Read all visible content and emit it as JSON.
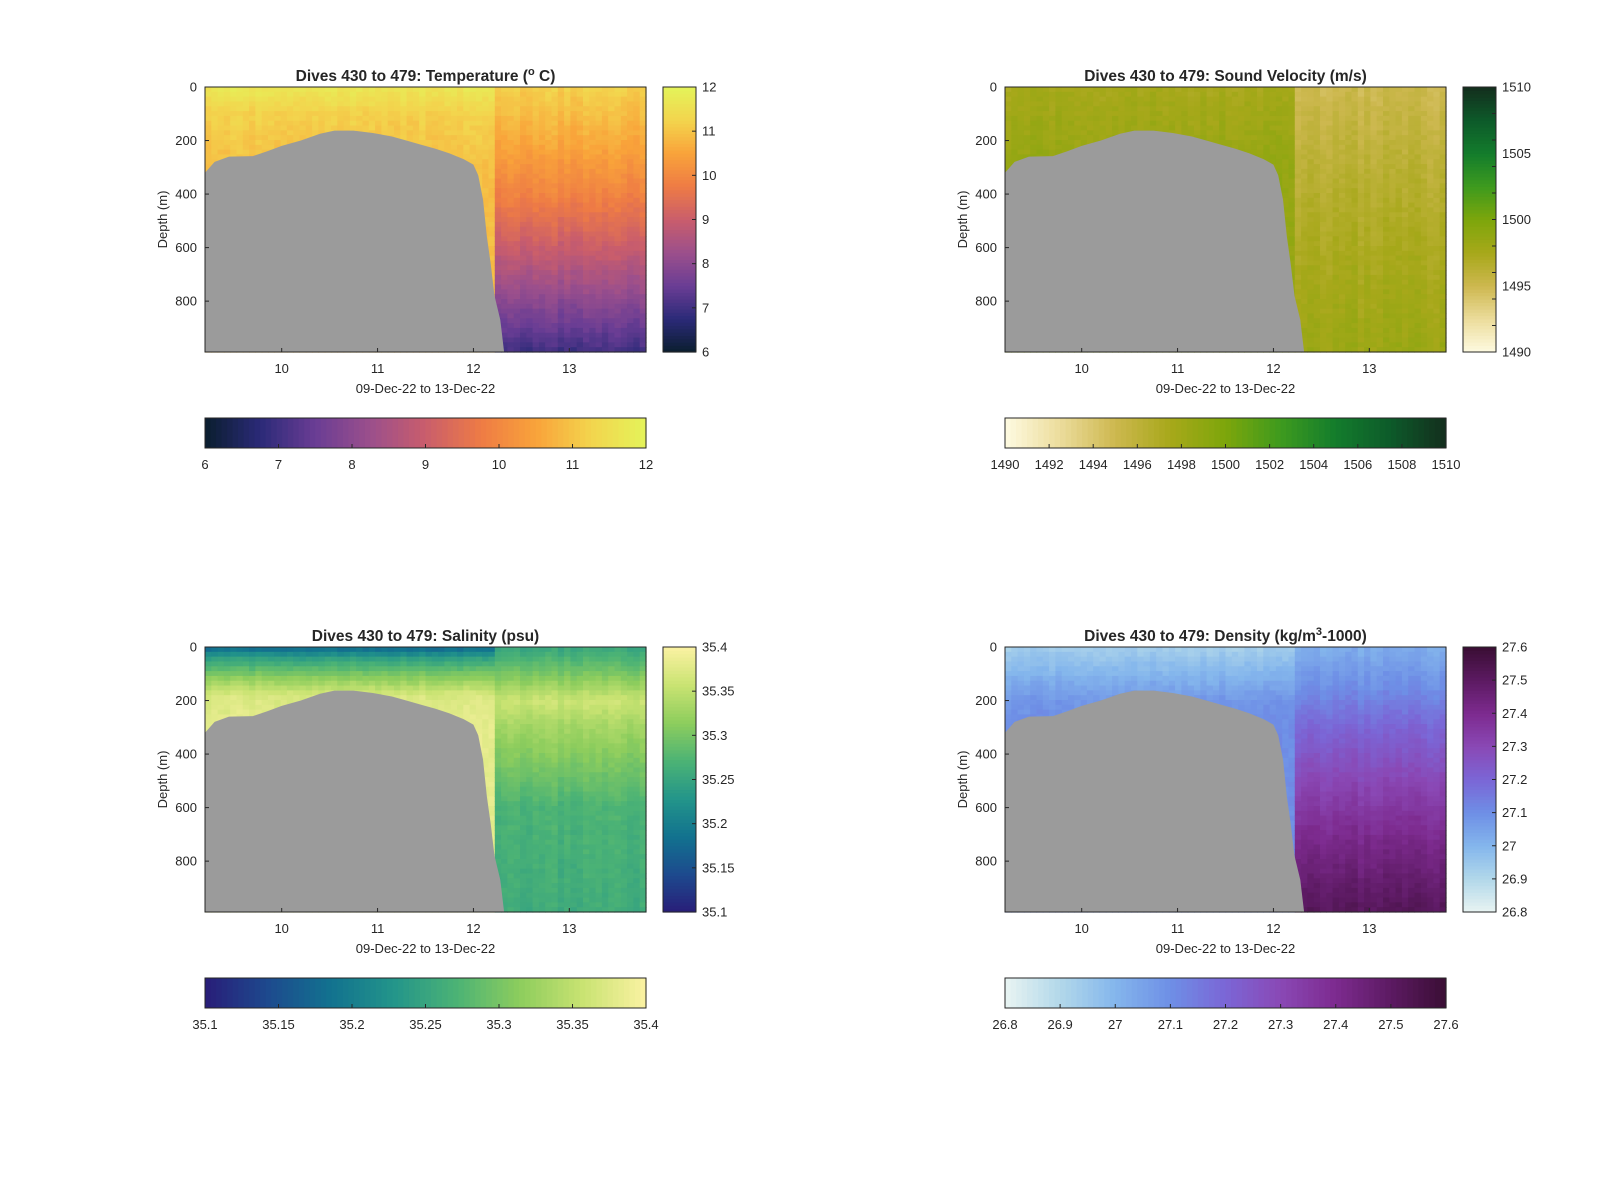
{
  "figure": {
    "background": "#ffffff",
    "mask_color": "#9b9b9b"
  },
  "chart_data": [
    {
      "type": "heatmap",
      "title_main": "Dives 430 to 479: Temperature (",
      "title_sup": "o",
      "title_tail": " C)",
      "xlabel": "09-Dec-22 to 13-Dec-22",
      "ylabel": "Depth (m)",
      "xticks": [
        "10",
        "11",
        "12",
        "13"
      ],
      "xlim": [
        9.2,
        13.8
      ],
      "yticks": [
        "0",
        "200",
        "400",
        "600",
        "800"
      ],
      "ylim": [
        0,
        990
      ],
      "y_reversed": true,
      "colorbar_range": [
        6,
        12
      ],
      "colorbar_ticks": [
        "6",
        "7",
        "8",
        "9",
        "10",
        "11",
        "12"
      ],
      "colormap": [
        "#0a1e2e",
        "#2b2a78",
        "#6a3d94",
        "#9b4f8c",
        "#c95d6c",
        "#ee7b45",
        "#f9a33a",
        "#f3d44d",
        "#e4f45a"
      ],
      "field": {
        "east_transition_day": 12.22,
        "west_profile": [
          [
            0,
            11.7
          ],
          [
            100,
            11.2
          ],
          [
            300,
            10.9
          ]
        ],
        "east_profile": [
          [
            0,
            11.2
          ],
          [
            200,
            10.6
          ],
          [
            400,
            9.9
          ],
          [
            600,
            9.0
          ],
          [
            800,
            8.0
          ],
          [
            990,
            7.0
          ]
        ]
      },
      "bathymetry": [
        [
          9.2,
          320
        ],
        [
          9.3,
          280
        ],
        [
          9.45,
          260
        ],
        [
          9.7,
          258
        ],
        [
          9.85,
          240
        ],
        [
          10.0,
          220
        ],
        [
          10.2,
          200
        ],
        [
          10.4,
          175
        ],
        [
          10.55,
          163
        ],
        [
          10.75,
          163
        ],
        [
          10.95,
          172
        ],
        [
          11.15,
          185
        ],
        [
          11.3,
          200
        ],
        [
          11.45,
          215
        ],
        [
          11.6,
          230
        ],
        [
          11.75,
          248
        ],
        [
          11.9,
          270
        ],
        [
          12.0,
          290
        ],
        [
          12.05,
          330
        ],
        [
          12.1,
          420
        ],
        [
          12.14,
          560
        ],
        [
          12.18,
          660
        ],
        [
          12.22,
          780
        ],
        [
          12.28,
          870
        ],
        [
          12.32,
          990
        ]
      ]
    },
    {
      "type": "heatmap",
      "title_main": "Dives 430 to 479: Sound Velocity (m/s)",
      "title_sup": "",
      "title_tail": "",
      "xlabel": "09-Dec-22 to 13-Dec-22",
      "ylabel": "Depth (m)",
      "xticks": [
        "10",
        "11",
        "12",
        "13"
      ],
      "xlim": [
        9.2,
        13.8
      ],
      "yticks": [
        "0",
        "200",
        "400",
        "600",
        "800"
      ],
      "ylim": [
        0,
        990
      ],
      "y_reversed": true,
      "colorbar_range": [
        1490,
        1510
      ],
      "colorbar_ticks": [
        "1490",
        "1492",
        "1494",
        "1496",
        "1498",
        "1500",
        "1502",
        "1504",
        "1506",
        "1508",
        "1510"
      ],
      "colormap": [
        "#fefbe1",
        "#ecdc9c",
        "#cdb84f",
        "#a7a81a",
        "#7da60b",
        "#3e9a1e",
        "#137c2c",
        "#0d5a2a",
        "#132e1d"
      ],
      "field": {
        "east_transition_day": 12.22,
        "west_profile": [
          [
            0,
            1497.5
          ],
          [
            300,
            1498.5
          ]
        ],
        "east_profile": [
          [
            0,
            1495.0
          ],
          [
            300,
            1496.2
          ],
          [
            600,
            1497.2
          ],
          [
            990,
            1498.2
          ]
        ]
      },
      "bathymetry": [
        [
          9.2,
          320
        ],
        [
          9.3,
          280
        ],
        [
          9.45,
          260
        ],
        [
          9.7,
          258
        ],
        [
          9.85,
          240
        ],
        [
          10.0,
          220
        ],
        [
          10.2,
          200
        ],
        [
          10.4,
          175
        ],
        [
          10.55,
          163
        ],
        [
          10.75,
          163
        ],
        [
          10.95,
          172
        ],
        [
          11.15,
          185
        ],
        [
          11.3,
          200
        ],
        [
          11.45,
          215
        ],
        [
          11.6,
          230
        ],
        [
          11.75,
          248
        ],
        [
          11.9,
          270
        ],
        [
          12.0,
          290
        ],
        [
          12.05,
          330
        ],
        [
          12.1,
          420
        ],
        [
          12.14,
          560
        ],
        [
          12.18,
          660
        ],
        [
          12.22,
          780
        ],
        [
          12.28,
          870
        ],
        [
          12.32,
          990
        ]
      ]
    },
    {
      "type": "heatmap",
      "title_main": "Dives 430 to 479: Salinity (psu)",
      "title_sup": "",
      "title_tail": "",
      "xlabel": "09-Dec-22 to 13-Dec-22",
      "ylabel": "Depth (m)",
      "xticks": [
        "10",
        "11",
        "12",
        "13"
      ],
      "xlim": [
        9.2,
        13.8
      ],
      "yticks": [
        "0",
        "200",
        "400",
        "600",
        "800"
      ],
      "ylim": [
        0,
        990
      ],
      "y_reversed": true,
      "colorbar_range": [
        35.1,
        35.4
      ],
      "colorbar_ticks": [
        "35.1",
        "35.15",
        "35.2",
        "35.25",
        "35.3",
        "35.35",
        "35.4"
      ],
      "colormap": [
        "#281d78",
        "#1d4a8e",
        "#12728f",
        "#23958a",
        "#4cb375",
        "#8dcd5d",
        "#c9e372",
        "#fbf2a2"
      ],
      "field": {
        "east_transition_day": 12.22,
        "west_profile": [
          [
            0,
            35.17
          ],
          [
            40,
            35.24
          ],
          [
            100,
            35.3
          ],
          [
            180,
            35.37
          ],
          [
            300,
            35.38
          ]
        ],
        "east_profile": [
          [
            0,
            35.25
          ],
          [
            100,
            35.3
          ],
          [
            200,
            35.36
          ],
          [
            300,
            35.33
          ],
          [
            450,
            35.3
          ],
          [
            600,
            35.27
          ],
          [
            990,
            35.26
          ]
        ]
      },
      "bathymetry": [
        [
          9.2,
          320
        ],
        [
          9.3,
          280
        ],
        [
          9.45,
          260
        ],
        [
          9.7,
          258
        ],
        [
          9.85,
          240
        ],
        [
          10.0,
          220
        ],
        [
          10.2,
          200
        ],
        [
          10.4,
          175
        ],
        [
          10.55,
          163
        ],
        [
          10.75,
          163
        ],
        [
          10.95,
          172
        ],
        [
          11.15,
          185
        ],
        [
          11.3,
          200
        ],
        [
          11.45,
          215
        ],
        [
          11.6,
          230
        ],
        [
          11.75,
          248
        ],
        [
          11.9,
          270
        ],
        [
          12.0,
          290
        ],
        [
          12.05,
          330
        ],
        [
          12.1,
          420
        ],
        [
          12.14,
          560
        ],
        [
          12.18,
          660
        ],
        [
          12.22,
          780
        ],
        [
          12.28,
          870
        ],
        [
          12.32,
          990
        ]
      ]
    },
    {
      "type": "heatmap",
      "title_main": "Dives 430 to 479: Density (kg/m",
      "title_sup": "3",
      "title_tail": "-1000)",
      "xlabel": "09-Dec-22 to 13-Dec-22",
      "ylabel": "Depth (m)",
      "xticks": [
        "10",
        "11",
        "12",
        "13"
      ],
      "xlim": [
        9.2,
        13.8
      ],
      "yticks": [
        "0",
        "200",
        "400",
        "600",
        "800"
      ],
      "ylim": [
        0,
        990
      ],
      "y_reversed": true,
      "colorbar_range": [
        26.8,
        27.6
      ],
      "colorbar_ticks": [
        "26.8",
        "26.9",
        "27",
        "27.1",
        "27.2",
        "27.3",
        "27.4",
        "27.5",
        "27.6"
      ],
      "colormap": [
        "#e9f4f2",
        "#b2d8ea",
        "#84b6ec",
        "#6e8fe6",
        "#7b66d6",
        "#8a48b5",
        "#7d2b8f",
        "#5c1a62",
        "#3a0e34"
      ],
      "field": {
        "east_transition_day": 12.22,
        "west_profile": [
          [
            0,
            26.93
          ],
          [
            100,
            27.0
          ],
          [
            200,
            27.08
          ],
          [
            300,
            27.1
          ]
        ],
        "east_profile": [
          [
            0,
            27.02
          ],
          [
            150,
            27.1
          ],
          [
            300,
            27.2
          ],
          [
            500,
            27.3
          ],
          [
            700,
            27.4
          ],
          [
            990,
            27.52
          ]
        ]
      },
      "bathymetry": [
        [
          9.2,
          320
        ],
        [
          9.3,
          280
        ],
        [
          9.45,
          260
        ],
        [
          9.7,
          258
        ],
        [
          9.85,
          240
        ],
        [
          10.0,
          220
        ],
        [
          10.2,
          200
        ],
        [
          10.4,
          175
        ],
        [
          10.55,
          163
        ],
        [
          10.75,
          163
        ],
        [
          10.95,
          172
        ],
        [
          11.15,
          185
        ],
        [
          11.3,
          200
        ],
        [
          11.45,
          215
        ],
        [
          11.6,
          230
        ],
        [
          11.75,
          248
        ],
        [
          11.9,
          270
        ],
        [
          12.0,
          290
        ],
        [
          12.05,
          330
        ],
        [
          12.1,
          420
        ],
        [
          12.14,
          560
        ],
        [
          12.18,
          660
        ],
        [
          12.22,
          780
        ],
        [
          12.28,
          870
        ],
        [
          12.32,
          990
        ]
      ]
    }
  ]
}
